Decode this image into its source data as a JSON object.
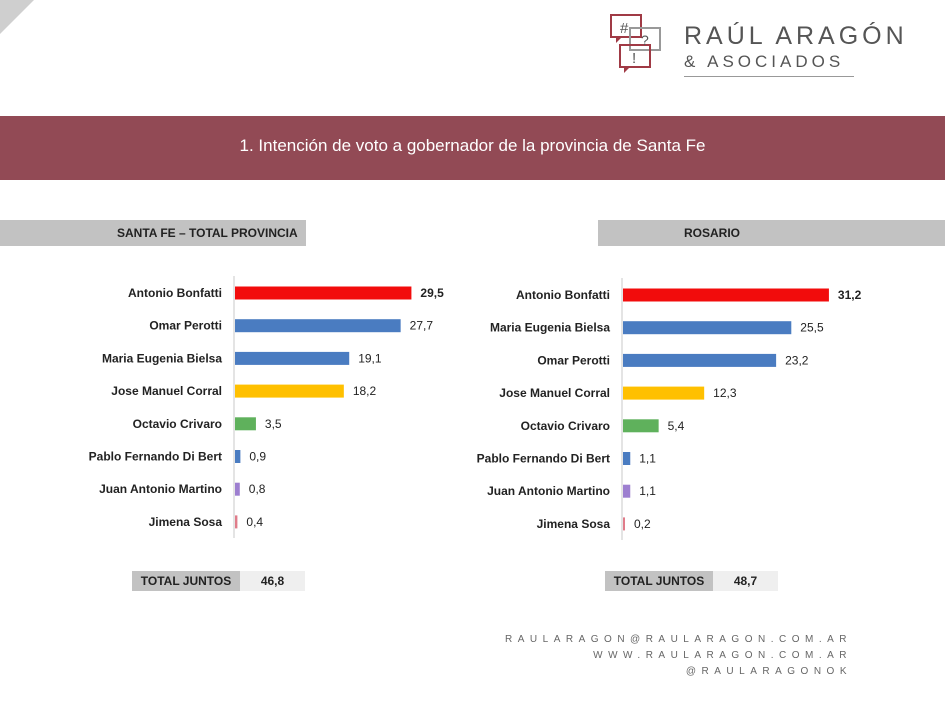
{
  "logo": {
    "line1": "RAÚL ARAGÓN",
    "line2": "& ASOCIADOS",
    "icon_marks": [
      "#",
      "?",
      "!"
    ]
  },
  "banner": {
    "title": "1. Intención de voto a gobernador de la provincia de Santa Fe"
  },
  "colors": {
    "banner": "#924a55",
    "red": "#f20c0c",
    "blue": "#4a7cc1",
    "yellow": "#ffc000",
    "green": "#5fb15c",
    "purple": "#9d7fd0",
    "pink": "#e07c8a"
  },
  "chart_data": [
    {
      "type": "bar",
      "orientation": "horizontal",
      "title": "SANTA FE – TOTAL PROVINCIA",
      "categories": [
        "Antonio Bonfatti",
        "Omar Perotti",
        "Maria Eugenia Bielsa",
        "Jose Manuel Corral",
        "Octavio Crivaro",
        "Pablo Fernando Di Bert",
        "Juan Antonio Martino",
        "Jimena Sosa"
      ],
      "values": [
        29.5,
        27.7,
        19.1,
        18.2,
        3.5,
        0.9,
        0.8,
        0.4
      ],
      "labels": [
        "29,5",
        "27,7",
        "19,1",
        "18,2",
        "3,5",
        "0,9",
        "0,8",
        "0,4"
      ],
      "bar_colors": [
        "#f20c0c",
        "#4a7cc1",
        "#4a7cc1",
        "#ffc000",
        "#5fb15c",
        "#4a7cc1",
        "#9d7fd0",
        "#e07c8a"
      ],
      "xlim": [
        0,
        35
      ],
      "total_label": "TOTAL JUNTOS",
      "total_value": "46,8"
    },
    {
      "type": "bar",
      "orientation": "horizontal",
      "title": "ROSARIO",
      "categories": [
        "Antonio Bonfatti",
        "Maria Eugenia Bielsa",
        "Omar Perotti",
        "Jose Manuel Corral",
        "Octavio Crivaro",
        "Pablo Fernando Di Bert",
        "Juan Antonio Martino",
        "Jimena Sosa"
      ],
      "values": [
        31.2,
        25.5,
        23.2,
        12.3,
        5.4,
        1.1,
        1.1,
        0.2
      ],
      "labels": [
        "31,2",
        "25,5",
        "23,2",
        "12,3",
        "5,4",
        "1,1",
        "1,1",
        "0,2"
      ],
      "bar_colors": [
        "#f20c0c",
        "#4a7cc1",
        "#4a7cc1",
        "#ffc000",
        "#5fb15c",
        "#4a7cc1",
        "#9d7fd0",
        "#e07c8a"
      ],
      "xlim": [
        0,
        35
      ],
      "total_label": "TOTAL JUNTOS",
      "total_value": "48,7"
    }
  ],
  "contact": {
    "email": "RAULARAGON@RAULARAGON.COM.AR",
    "web": "WWW.RAULARAGON.COM.AR",
    "social": "@RAULARAGONOK"
  }
}
